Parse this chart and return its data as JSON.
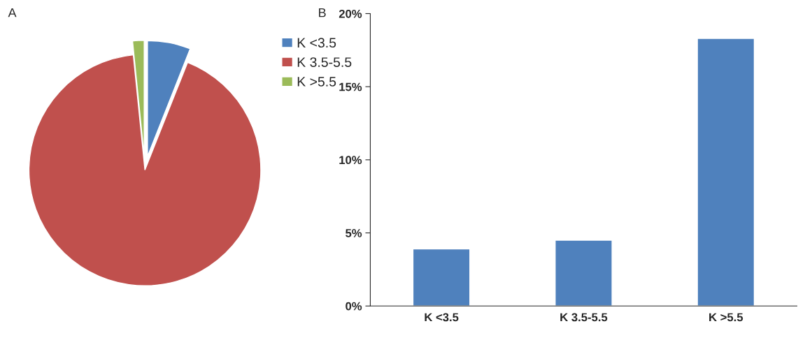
{
  "chart_data": [
    {
      "type": "pie",
      "categories": [
        "K <3.5",
        "K 3.5-5.5",
        "K >5.5"
      ],
      "values": [
        6,
        92.4,
        1.6
      ],
      "colors": [
        "#4f81bd",
        "#c0504d",
        "#9bbb59"
      ],
      "legend": "top right",
      "annotations": [
        "A"
      ]
    },
    {
      "type": "bar",
      "categories": [
        "K <3.5",
        "K 3.5-5.5",
        "K >5.5"
      ],
      "values": [
        3.9,
        4.5,
        18.3
      ],
      "color": "#4f81bd",
      "ylim": [
        0,
        20
      ],
      "yticks": [
        {
          "value": 0,
          "label": "0%"
        },
        {
          "value": 5,
          "label": "5%"
        },
        {
          "value": 10,
          "label": "10%"
        },
        {
          "value": 15,
          "label": "15%"
        },
        {
          "value": 20,
          "label": "20%"
        }
      ],
      "grid": false,
      "annotations": [
        "B"
      ]
    }
  ]
}
